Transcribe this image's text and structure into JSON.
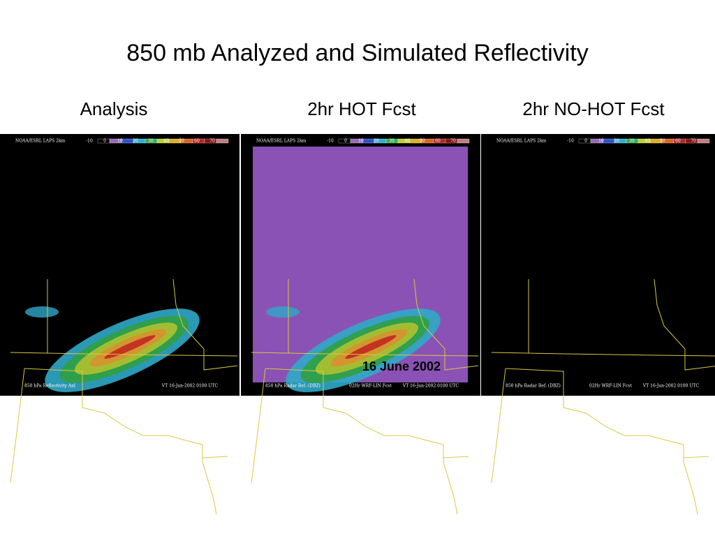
{
  "title": "850 mb Analyzed and Simulated Reflectivity",
  "colorbar_labels": [
    "-10",
    "0",
    "10",
    "20",
    "30",
    "40",
    "50",
    "60",
    "70"
  ],
  "panels": [
    {
      "label": "Analysis",
      "header": "NOAA/ESRL LAPS  2km",
      "footer_left": "850 hPa  Reflectivity Anl",
      "footer_mid": "",
      "footer_right": "VT 16-Jun-2002 0100 UTC"
    },
    {
      "label": "2hr HOT  Fcst",
      "header": "NOAA/ESRL LAPS  2km",
      "footer_left": "850 hPa Radar Ref. (DBZ)",
      "footer_mid": "02Hr WRF-LIN Fcst",
      "footer_right": "VT 16-Jun-2002 0100 UTC"
    },
    {
      "label": "2hr NO-HOT  Fcst",
      "header": "NOAA/ESRL LAPS  2km",
      "footer_left": "850 hPa Radar Ref. (DBZ)",
      "footer_mid": "02Hr WRF-LIN Fcst",
      "footer_right": "VT 16-Jun-2002 0100 UTC"
    }
  ],
  "date_label": "16 June 2002"
}
